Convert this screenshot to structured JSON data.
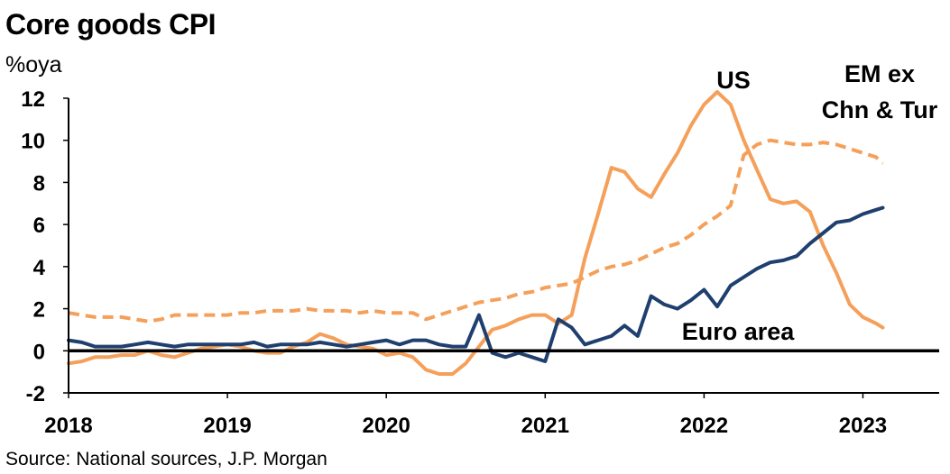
{
  "chart_data": {
    "type": "line",
    "title": "Core goods CPI",
    "unit_label": "%oya",
    "source": "Source: National sources, J.P. Morgan",
    "xlim": [
      2018.0,
      2023.48
    ],
    "ylim": [
      -2,
      12
    ],
    "yticks": [
      12,
      10,
      8,
      6,
      4,
      2,
      0,
      -2
    ],
    "xticks": [
      {
        "label": "2018",
        "value": 2018.0
      },
      {
        "label": "2019",
        "value": 2019.0
      },
      {
        "label": "2020",
        "value": 2020.0
      },
      {
        "label": "2021",
        "value": 2021.0
      },
      {
        "label": "2022",
        "value": 2022.0
      },
      {
        "label": "2023",
        "value": 2023.0
      }
    ],
    "zero_line": true,
    "grid": false,
    "colors": {
      "us": "#F5A05A",
      "em": "#F5A05A",
      "euro": "#1F3F6E",
      "axis": "#000000"
    },
    "annotations": [
      {
        "key": "us",
        "lines": [
          "US"
        ]
      },
      {
        "key": "em",
        "lines": [
          "EM ex",
          "Chn & Tur"
        ]
      },
      {
        "key": "euro",
        "lines": [
          "Euro area"
        ]
      }
    ],
    "series": [
      {
        "key": "us",
        "name": "US",
        "style": "solid",
        "x": [
          2018.0,
          2018.083,
          2018.167,
          2018.25,
          2018.333,
          2018.417,
          2018.5,
          2018.583,
          2018.667,
          2018.75,
          2018.833,
          2018.917,
          2019.0,
          2019.083,
          2019.167,
          2019.25,
          2019.333,
          2019.417,
          2019.5,
          2019.583,
          2019.667,
          2019.75,
          2019.833,
          2019.917,
          2020.0,
          2020.083,
          2020.167,
          2020.25,
          2020.333,
          2020.417,
          2020.5,
          2020.583,
          2020.667,
          2020.75,
          2020.833,
          2020.917,
          2021.0,
          2021.083,
          2021.167,
          2021.25,
          2021.333,
          2021.417,
          2021.5,
          2021.583,
          2021.667,
          2021.75,
          2021.833,
          2021.917,
          2022.0,
          2022.083,
          2022.167,
          2022.25,
          2022.333,
          2022.417,
          2022.5,
          2022.583,
          2022.667,
          2022.75,
          2022.833,
          2022.917,
          2023.0,
          2023.083,
          2023.125
        ],
        "values": [
          -0.6,
          -0.5,
          -0.3,
          -0.3,
          -0.2,
          -0.2,
          0.0,
          -0.2,
          -0.3,
          -0.1,
          0.1,
          0.2,
          0.3,
          0.2,
          0.0,
          -0.1,
          -0.1,
          0.2,
          0.4,
          0.8,
          0.6,
          0.3,
          0.2,
          0.1,
          -0.2,
          -0.1,
          -0.3,
          -0.9,
          -1.1,
          -1.1,
          -0.6,
          0.2,
          1.0,
          1.2,
          1.5,
          1.7,
          1.7,
          1.3,
          1.7,
          4.4,
          6.5,
          8.7,
          8.5,
          7.7,
          7.3,
          8.4,
          9.4,
          10.7,
          11.7,
          12.3,
          11.7,
          10.0,
          8.6,
          7.2,
          7.0,
          7.1,
          6.6,
          5.0,
          3.7,
          2.2,
          1.6,
          1.3,
          1.1
        ]
      },
      {
        "key": "em",
        "name": "EM ex Chn & Tur",
        "style": "dashed",
        "x": [
          2018.0,
          2018.083,
          2018.167,
          2018.25,
          2018.333,
          2018.417,
          2018.5,
          2018.583,
          2018.667,
          2018.75,
          2018.833,
          2018.917,
          2019.0,
          2019.083,
          2019.167,
          2019.25,
          2019.333,
          2019.417,
          2019.5,
          2019.583,
          2019.667,
          2019.75,
          2019.833,
          2019.917,
          2020.0,
          2020.083,
          2020.167,
          2020.25,
          2020.333,
          2020.417,
          2020.5,
          2020.583,
          2020.667,
          2020.75,
          2020.833,
          2020.917,
          2021.0,
          2021.083,
          2021.167,
          2021.25,
          2021.333,
          2021.417,
          2021.5,
          2021.583,
          2021.667,
          2021.75,
          2021.833,
          2021.917,
          2022.0,
          2022.083,
          2022.167,
          2022.25,
          2022.333,
          2022.417,
          2022.5,
          2022.583,
          2022.667,
          2022.75,
          2022.833,
          2022.917,
          2023.0,
          2023.083,
          2023.125
        ],
        "values": [
          1.8,
          1.7,
          1.6,
          1.6,
          1.6,
          1.5,
          1.4,
          1.5,
          1.7,
          1.7,
          1.7,
          1.7,
          1.7,
          1.8,
          1.8,
          1.9,
          1.9,
          1.9,
          2.0,
          1.9,
          1.9,
          1.9,
          1.8,
          1.9,
          1.8,
          1.8,
          1.8,
          1.5,
          1.7,
          1.9,
          2.1,
          2.3,
          2.4,
          2.5,
          2.7,
          2.8,
          3.0,
          3.1,
          3.2,
          3.5,
          3.8,
          4.0,
          4.1,
          4.3,
          4.6,
          4.9,
          5.1,
          5.5,
          6.0,
          6.4,
          6.9,
          9.3,
          9.8,
          10.0,
          9.9,
          9.8,
          9.8,
          9.9,
          9.8,
          9.6,
          9.4,
          9.2,
          8.9
        ]
      },
      {
        "key": "euro",
        "name": "Euro area",
        "style": "solid",
        "x": [
          2018.0,
          2018.083,
          2018.167,
          2018.25,
          2018.333,
          2018.417,
          2018.5,
          2018.583,
          2018.667,
          2018.75,
          2018.833,
          2018.917,
          2019.0,
          2019.083,
          2019.167,
          2019.25,
          2019.333,
          2019.417,
          2019.5,
          2019.583,
          2019.667,
          2019.75,
          2019.833,
          2019.917,
          2020.0,
          2020.083,
          2020.167,
          2020.25,
          2020.333,
          2020.417,
          2020.5,
          2020.583,
          2020.667,
          2020.75,
          2020.833,
          2020.917,
          2021.0,
          2021.083,
          2021.167,
          2021.25,
          2021.333,
          2021.417,
          2021.5,
          2021.583,
          2021.667,
          2021.75,
          2021.833,
          2021.917,
          2022.0,
          2022.083,
          2022.167,
          2022.25,
          2022.333,
          2022.417,
          2022.5,
          2022.583,
          2022.667,
          2022.75,
          2022.833,
          2022.917,
          2023.0,
          2023.083,
          2023.125
        ],
        "values": [
          0.5,
          0.4,
          0.2,
          0.2,
          0.2,
          0.3,
          0.4,
          0.3,
          0.2,
          0.3,
          0.3,
          0.3,
          0.3,
          0.3,
          0.4,
          0.2,
          0.3,
          0.3,
          0.3,
          0.4,
          0.3,
          0.2,
          0.3,
          0.4,
          0.5,
          0.3,
          0.5,
          0.5,
          0.3,
          0.2,
          0.2,
          1.7,
          -0.1,
          -0.3,
          -0.1,
          -0.3,
          -0.5,
          1.5,
          1.1,
          0.3,
          0.5,
          0.7,
          1.2,
          0.7,
          2.6,
          2.2,
          2.0,
          2.4,
          2.9,
          2.1,
          3.1,
          3.5,
          3.9,
          4.2,
          4.3,
          4.5,
          5.1,
          5.6,
          6.1,
          6.2,
          6.5,
          6.7,
          6.8
        ]
      }
    ]
  }
}
